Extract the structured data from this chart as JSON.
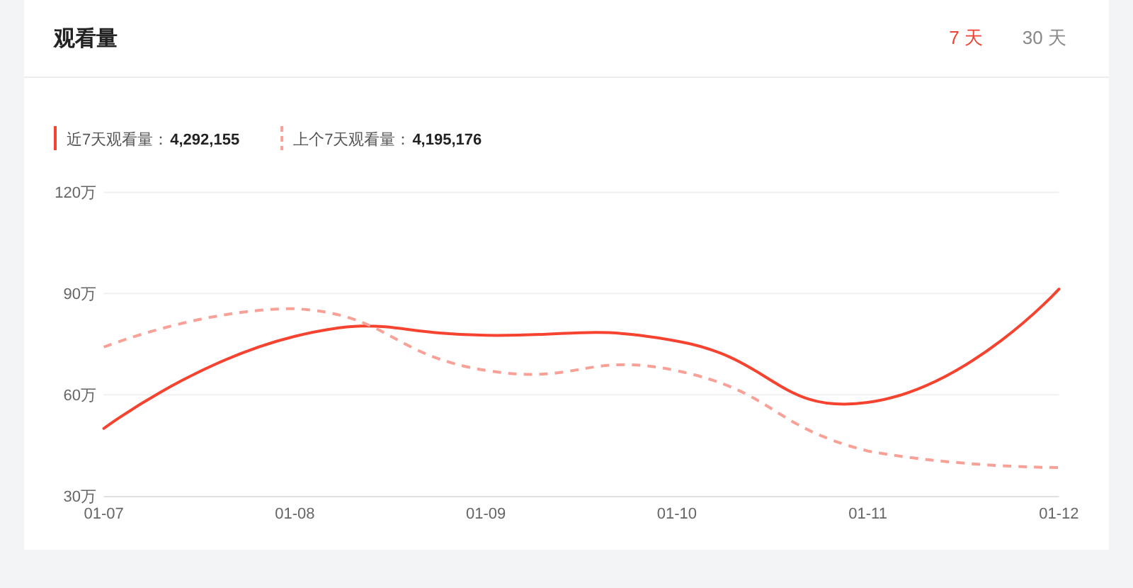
{
  "chart_data": {
    "type": "line",
    "title": "观看量",
    "categories": [
      "01-07",
      "01-08",
      "01-09",
      "01-10",
      "01-11",
      "01-12"
    ],
    "ylim": [
      30,
      120
    ],
    "yticks": [
      {
        "value": 30,
        "label": "30万"
      },
      {
        "value": 60,
        "label": "60万"
      },
      {
        "value": 90,
        "label": "90万"
      },
      {
        "value": 120,
        "label": "120万"
      }
    ],
    "grid": "y",
    "legend": "top left",
    "series": [
      {
        "name": "近7天观看量：",
        "color": "#f5432f",
        "line_style": "solid",
        "values": [
          50.0,
          77.3,
          77.6,
          75.9,
          57.7,
          91.3
        ]
      },
      {
        "name": "上个7天观看量：",
        "color": "#f9a197",
        "line_style": "dashed",
        "values": [
          74.1,
          85.5,
          67.2,
          67.1,
          43.3,
          38.4
        ]
      }
    ],
    "annotations": [
      "4,292,155",
      "4,195,176",
      "7 天",
      "30 天"
    ]
  }
}
